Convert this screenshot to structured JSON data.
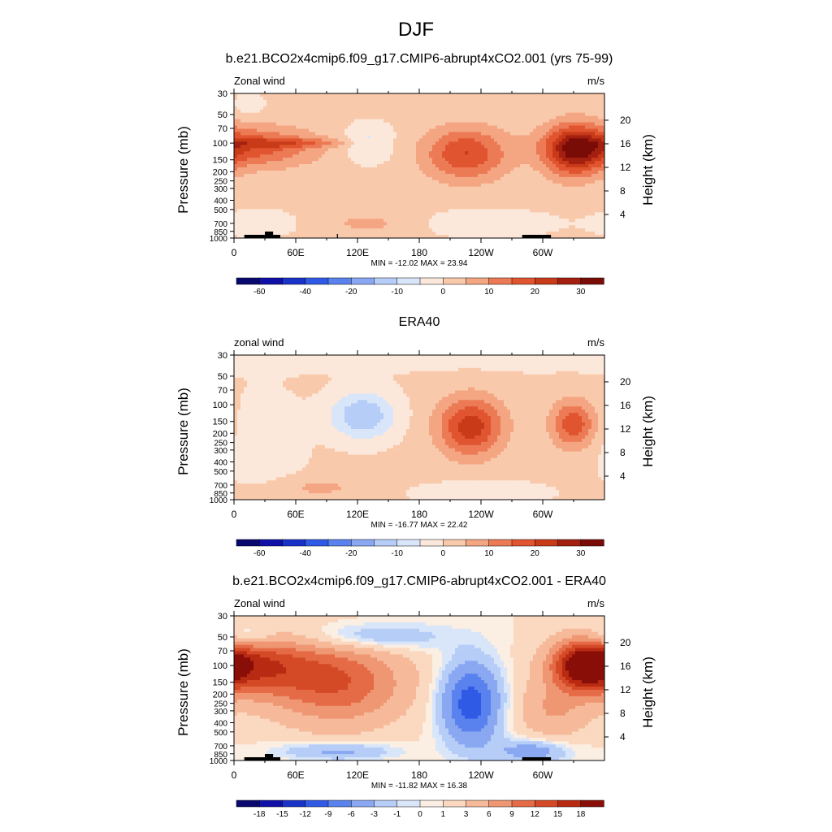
{
  "figure_title": "DJF",
  "colors": {
    "model_scale": [
      "#08086f",
      "#1010a8",
      "#1a32c8",
      "#2f5ae6",
      "#5a82ee",
      "#8aa8f2",
      "#b6cdf7",
      "#d9e6fa",
      "#fce8da",
      "#f9c9ac",
      "#f4a582",
      "#ec7a55",
      "#e05530",
      "#c83a18",
      "#a32010",
      "#7a0c08"
    ],
    "diff_scale": [
      "#08086f",
      "#1010a8",
      "#1a32c8",
      "#2f5ae6",
      "#5a82ee",
      "#8aa8f2",
      "#b6cdf7",
      "#d9e6fa",
      "#fbeee2",
      "#fbd8c0",
      "#f6b999",
      "#ef9673",
      "#e56b47",
      "#d44a26",
      "#b82a12",
      "#8a0e08"
    ]
  },
  "panels": [
    {
      "title": "b.e21.BCO2x4cmip6.f09_g17.CMIP6-abrupt4xCO2.001 (yrs 75-99)",
      "left_label": "Zonal wind",
      "right_label": "m/s",
      "stats": "MIN = -12.02  MAX =  23.94",
      "scale": "model",
      "colorbar_labels": [
        "-60",
        "-40",
        "-20",
        "-10",
        "0",
        "10",
        "20",
        "30"
      ],
      "colorbar_label_slots": [
        1,
        3,
        5,
        7,
        9,
        11,
        13,
        15
      ],
      "show_topography": true
    },
    {
      "title": "ERA40",
      "left_label": "zonal wind",
      "right_label": "m/s",
      "stats": "MIN = -16.77  MAX =  22.42",
      "scale": "model",
      "colorbar_labels": [
        "-60",
        "-40",
        "-20",
        "-10",
        "0",
        "10",
        "20",
        "30"
      ],
      "colorbar_label_slots": [
        1,
        3,
        5,
        7,
        9,
        11,
        13,
        15
      ],
      "show_topography": false
    },
    {
      "title": "b.e21.BCO2x4cmip6.f09_g17.CMIP6-abrupt4xCO2.001 - ERA40",
      "left_label": "Zonal wind",
      "right_label": "m/s",
      "stats": "MIN = -11.82  MAX =  16.38",
      "scale": "diff",
      "colorbar_labels": [
        "-18",
        "-15",
        "-12",
        "-9",
        "-6",
        "-3",
        "-1",
        "0",
        "1",
        "3",
        "6",
        "9",
        "12",
        "15",
        "18"
      ],
      "colorbar_label_slots": [
        1,
        2,
        3,
        4,
        5,
        6,
        7,
        8,
        9,
        10,
        11,
        12,
        13,
        14,
        15
      ],
      "show_topography": true
    }
  ],
  "chart_data": [
    {
      "type": "heatmap",
      "title": "b.e21.BCO2x4cmip6.f09_g17.CMIP6-abrupt4xCO2.001 (yrs 75-99)",
      "variable": "Zonal wind",
      "units": "m/s",
      "xlabel": "",
      "ylabel": "Pressure (mb)",
      "y2label": "Height (km)",
      "x_ticks": [
        "0",
        "60E",
        "120E",
        "180",
        "120W",
        "60W"
      ],
      "y_ticks": [
        "30",
        "50",
        "70",
        "100",
        "150",
        "200",
        "250",
        "300",
        "400",
        "500",
        "700",
        "850",
        "1000"
      ],
      "y2_ticks": [
        "4",
        "8",
        "12",
        "16",
        "20"
      ],
      "xlim": [
        0,
        360
      ],
      "ylim": [
        1000,
        30
      ],
      "y_scale": "log",
      "contour_levels": [
        -70,
        -60,
        -50,
        -40,
        -30,
        -20,
        -15,
        -10,
        -5,
        0,
        5,
        10,
        15,
        20,
        25,
        30,
        35
      ],
      "min": -12.02,
      "max": 23.94,
      "features": [
        {
          "lon": 15,
          "p": 110,
          "value": 17,
          "sx": 45,
          "sy": 0.35
        },
        {
          "lon": 60,
          "p": 100,
          "value": 9,
          "sx": 45,
          "sy": 0.08
        },
        {
          "lon": 130,
          "p": 100,
          "value": -8,
          "sx": 17,
          "sy": 0.3
        },
        {
          "lon": 225,
          "p": 130,
          "value": 19,
          "sx": 28,
          "sy": 0.45
        },
        {
          "lon": 330,
          "p": 120,
          "value": 24,
          "sx": 20,
          "sy": 0.45
        },
        {
          "lon": 130,
          "p": 700,
          "value": 5,
          "sx": 35,
          "sy": 0.2
        },
        {
          "lon": 245,
          "p": 700,
          "value": -6,
          "sx": 40,
          "sy": 0.2
        },
        {
          "lon": 25,
          "p": 700,
          "value": -5,
          "sx": 25,
          "sy": 0.2
        },
        {
          "lon": 15,
          "p": 40,
          "value": -4,
          "sx": 10,
          "sy": 0.2
        }
      ]
    },
    {
      "type": "heatmap",
      "title": "ERA40",
      "variable": "zonal wind",
      "units": "m/s",
      "xlabel": "",
      "ylabel": "Pressure (mb)",
      "y2label": "Height (km)",
      "x_ticks": [
        "0",
        "60E",
        "120E",
        "180",
        "120W",
        "60W"
      ],
      "y_ticks": [
        "30",
        "50",
        "70",
        "100",
        "150",
        "200",
        "250",
        "300",
        "400",
        "500",
        "700",
        "850",
        "1000"
      ],
      "y2_ticks": [
        "4",
        "8",
        "12",
        "16",
        "20"
      ],
      "xlim": [
        0,
        360
      ],
      "ylim": [
        1000,
        30
      ],
      "y_scale": "log",
      "contour_levels": [
        -70,
        -60,
        -50,
        -40,
        -30,
        -20,
        -15,
        -10,
        -5,
        0,
        5,
        10,
        15,
        20,
        25,
        30,
        35
      ],
      "min": -16.77,
      "max": 22.42,
      "features": [
        {
          "lon": 125,
          "p": 130,
          "value": -16,
          "sx": 22,
          "sy": 0.4
        },
        {
          "lon": 30,
          "p": 250,
          "value": -5,
          "sx": 25,
          "sy": 0.8
        },
        {
          "lon": 230,
          "p": 170,
          "value": 22,
          "sx": 22,
          "sy": 0.5
        },
        {
          "lon": 330,
          "p": 160,
          "value": 18,
          "sx": 15,
          "sy": 0.4
        },
        {
          "lon": 80,
          "p": 750,
          "value": 5,
          "sx": 35,
          "sy": 0.2
        },
        {
          "lon": 240,
          "p": 850,
          "value": -6,
          "sx": 40,
          "sy": 0.18
        },
        {
          "lon": 0,
          "p": 30,
          "value": -3,
          "sx": 360,
          "sy": 0.3
        }
      ]
    },
    {
      "type": "heatmap",
      "title": "b.e21.BCO2x4cmip6.f09_g17.CMIP6-abrupt4xCO2.001 - ERA40",
      "variable": "Zonal wind",
      "units": "m/s",
      "xlabel": "",
      "ylabel": "Pressure (mb)",
      "y2label": "Height (km)",
      "x_ticks": [
        "0",
        "60E",
        "120E",
        "180",
        "120W",
        "60W"
      ],
      "y_ticks": [
        "30",
        "50",
        "70",
        "100",
        "150",
        "200",
        "250",
        "300",
        "400",
        "500",
        "700",
        "850",
        "1000"
      ],
      "y2_ticks": [
        "4",
        "8",
        "12",
        "16",
        "20"
      ],
      "xlim": [
        0,
        360
      ],
      "ylim": [
        1000,
        30
      ],
      "y_scale": "log",
      "contour_levels": [
        -21,
        -18,
        -15,
        -12,
        -9,
        -6,
        -3,
        -1,
        0,
        1,
        3,
        6,
        9,
        12,
        15,
        18,
        21
      ],
      "min": -11.82,
      "max": 16.38,
      "features": [
        {
          "lon": 15,
          "p": 100,
          "value": 13,
          "sx": 40,
          "sy": 0.5
        },
        {
          "lon": 100,
          "p": 150,
          "value": 11,
          "sx": 45,
          "sy": 0.7
        },
        {
          "lon": 230,
          "p": 250,
          "value": -12,
          "sx": 20,
          "sy": 0.7
        },
        {
          "lon": 340,
          "p": 100,
          "value": 16,
          "sx": 20,
          "sy": 0.4
        },
        {
          "lon": 130,
          "p": 50,
          "value": -5,
          "sx": 50,
          "sy": 0.25
        },
        {
          "lon": 10,
          "p": 50,
          "value": -5,
          "sx": 20,
          "sy": 0.2
        },
        {
          "lon": 100,
          "p": 800,
          "value": -5,
          "sx": 40,
          "sy": 0.15
        },
        {
          "lon": 290,
          "p": 800,
          "value": -6,
          "sx": 25,
          "sy": 0.2
        },
        {
          "lon": 310,
          "p": 300,
          "value": 5,
          "sx": 25,
          "sy": 0.5
        }
      ]
    }
  ]
}
